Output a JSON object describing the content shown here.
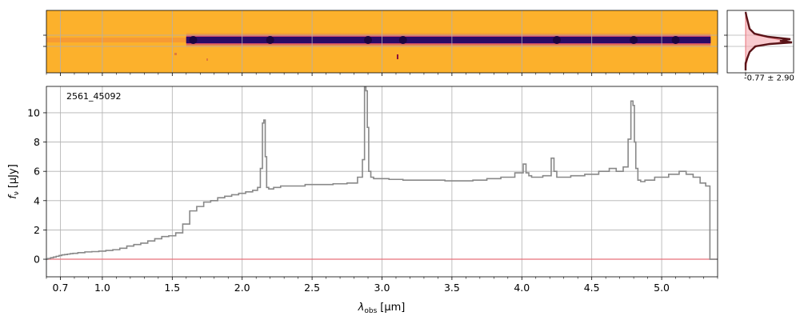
{
  "chart_data": {
    "type": "line",
    "object_id": "2561_45092",
    "xlabel": "λobs [μm]",
    "xlabel_main": "λ",
    "xlabel_sub": "obs",
    "xlabel_unit": "[μm]",
    "ylabel": "fν [μJy]",
    "ylabel_main": "f",
    "ylabel_sub": "ν",
    "ylabel_unit": "[μJy]",
    "xlim": [
      0.6,
      5.4
    ],
    "ylim": [
      -1.2,
      11.8
    ],
    "x_ticks": [
      0.7,
      1.0,
      1.5,
      2.0,
      2.5,
      3.0,
      3.5,
      4.0,
      4.5,
      5.0
    ],
    "x_tick_labels": [
      "0.7",
      "1.0",
      "1.5",
      "2.0",
      "2.5",
      "3.0",
      "3.5",
      "4.0",
      "4.5",
      "5.0"
    ],
    "y_ticks": [
      0,
      2,
      4,
      6,
      8,
      10
    ],
    "y_tick_labels": [
      "0",
      "2",
      "4",
      "6",
      "8",
      "10"
    ],
    "grid": true,
    "colors": {
      "spectrum": "#888888",
      "error": "#e8707a",
      "spec2d_bg": "#fcb12c",
      "trace": "#2a0a66",
      "trace_core": "#1a0440",
      "profile": "#5a1418",
      "profile_fill": "#f4a0a8"
    },
    "series": [
      {
        "name": "spectrum",
        "x": [
          0.6,
          0.62,
          0.64,
          0.66,
          0.68,
          0.7,
          0.72,
          0.74,
          0.76,
          0.78,
          0.8,
          0.85,
          0.9,
          0.95,
          1.0,
          1.05,
          1.1,
          1.15,
          1.2,
          1.25,
          1.3,
          1.35,
          1.4,
          1.45,
          1.5,
          1.55,
          1.6,
          1.65,
          1.7,
          1.75,
          1.8,
          1.85,
          1.9,
          1.95,
          2.0,
          2.05,
          2.1,
          2.12,
          2.14,
          2.15,
          2.16,
          2.17,
          2.18,
          2.2,
          2.25,
          2.3,
          2.4,
          2.5,
          2.6,
          2.7,
          2.8,
          2.85,
          2.87,
          2.88,
          2.89,
          2.9,
          2.91,
          2.93,
          2.95,
          3.0,
          3.1,
          3.2,
          3.3,
          3.4,
          3.5,
          3.6,
          3.7,
          3.8,
          3.9,
          4.0,
          4.02,
          4.04,
          4.06,
          4.08,
          4.1,
          4.2,
          4.22,
          4.24,
          4.26,
          4.3,
          4.4,
          4.5,
          4.6,
          4.65,
          4.7,
          4.75,
          4.77,
          4.79,
          4.8,
          4.81,
          4.82,
          4.84,
          4.86,
          4.9,
          5.0,
          5.1,
          5.15,
          5.2,
          5.25,
          5.3,
          5.33,
          5.34,
          5.35,
          5.4
        ],
        "y": [
          0.0,
          0.05,
          0.1,
          0.15,
          0.2,
          0.25,
          0.3,
          0.32,
          0.35,
          0.38,
          0.4,
          0.45,
          0.5,
          0.52,
          0.55,
          0.6,
          0.65,
          0.75,
          0.9,
          1.0,
          1.1,
          1.25,
          1.4,
          1.55,
          1.6,
          1.8,
          2.4,
          3.3,
          3.6,
          3.9,
          4.0,
          4.2,
          4.3,
          4.4,
          4.5,
          4.6,
          4.7,
          4.9,
          6.2,
          9.3,
          9.5,
          7.0,
          4.9,
          4.8,
          4.9,
          5.0,
          5.0,
          5.1,
          5.1,
          5.15,
          5.2,
          5.6,
          6.8,
          11.8,
          11.5,
          9.0,
          6.0,
          5.6,
          5.5,
          5.5,
          5.45,
          5.4,
          5.4,
          5.4,
          5.35,
          5.35,
          5.4,
          5.5,
          5.6,
          5.9,
          6.5,
          5.9,
          5.7,
          5.6,
          5.6,
          5.7,
          6.9,
          6.0,
          5.6,
          5.6,
          5.7,
          5.8,
          6.0,
          6.2,
          6.0,
          6.3,
          8.2,
          10.8,
          10.5,
          8.0,
          6.2,
          5.4,
          5.3,
          5.4,
          5.6,
          5.8,
          6.0,
          5.8,
          5.6,
          5.2,
          5.0,
          5.0,
          0.0,
          0.0
        ]
      },
      {
        "name": "uncertainty",
        "x": [
          0.6,
          5.4
        ],
        "y": [
          0.0,
          0.0
        ]
      }
    ],
    "spectrum_2d": {
      "trace_start": 1.6,
      "trace_end": 5.35,
      "clumps": [
        1.65,
        2.2,
        2.9,
        3.15,
        4.25,
        4.8,
        5.1
      ]
    },
    "profile_panel": {
      "annotation": "-0.77 ± 2.90"
    }
  }
}
